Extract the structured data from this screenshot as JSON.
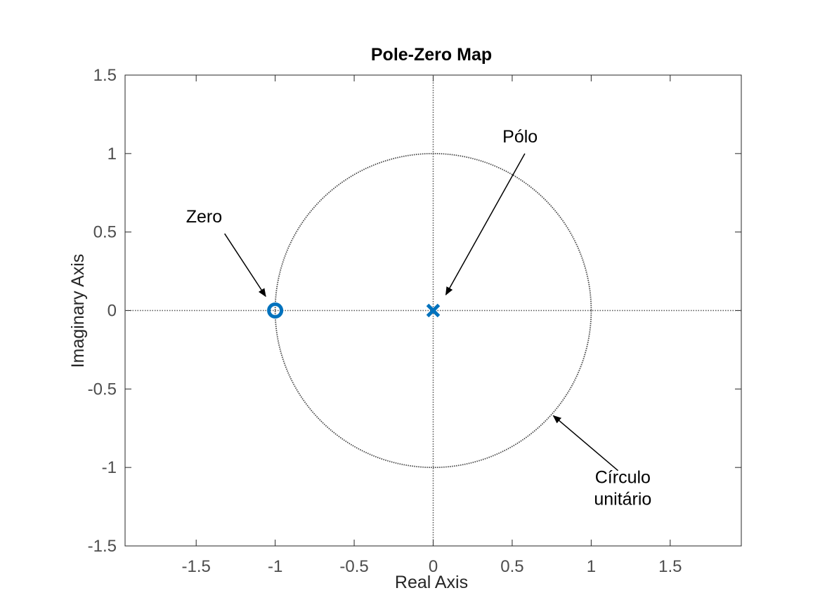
{
  "chart_data": {
    "type": "scatter",
    "title": "Pole-Zero Map",
    "xlabel": "Real Axis",
    "ylabel": "Imaginary Axis",
    "xlim": [
      -1.95,
      1.95
    ],
    "ylim": [
      -1.5,
      1.5
    ],
    "xticks": [
      -1.5,
      -1,
      -0.5,
      0,
      0.5,
      1,
      1.5
    ],
    "xtick_labels": [
      "-1.5",
      "-1",
      "-0.5",
      "0",
      "0.5",
      "1",
      "1.5"
    ],
    "yticks": [
      -1.5,
      -1,
      -0.5,
      0,
      0.5,
      1,
      1.5
    ],
    "ytick_labels": [
      "-1.5",
      "-1",
      "-0.5",
      "0",
      "0.5",
      "1",
      "1.5"
    ],
    "grid": false,
    "unit_circle": {
      "radius": 1,
      "center": [
        0,
        0
      ]
    },
    "series": [
      {
        "marker": "x",
        "color": "#0072bd",
        "x": [
          0
        ],
        "y": [
          0
        ]
      },
      {
        "marker": "o",
        "color": "#0072bd",
        "x": [
          -1
        ],
        "y": [
          0
        ]
      }
    ],
    "annotations": [
      {
        "lines": [
          "Pólo"
        ],
        "text_at": [
          0.55,
          1.07
        ],
        "arrow_from": [
          0.58,
          1.0
        ],
        "arrow_to": [
          0.08,
          0.1
        ]
      },
      {
        "lines": [
          "Zero"
        ],
        "text_at": [
          -1.45,
          0.56
        ],
        "arrow_from": [
          -1.32,
          0.49
        ],
        "arrow_to": [
          -1.06,
          0.09
        ]
      },
      {
        "lines": [
          "Círculo",
          "unitário"
        ],
        "text_at": [
          1.2,
          -1.1
        ],
        "arrow_from": [
          1.17,
          -1.02
        ],
        "arrow_to": [
          0.76,
          -0.67
        ]
      }
    ]
  }
}
